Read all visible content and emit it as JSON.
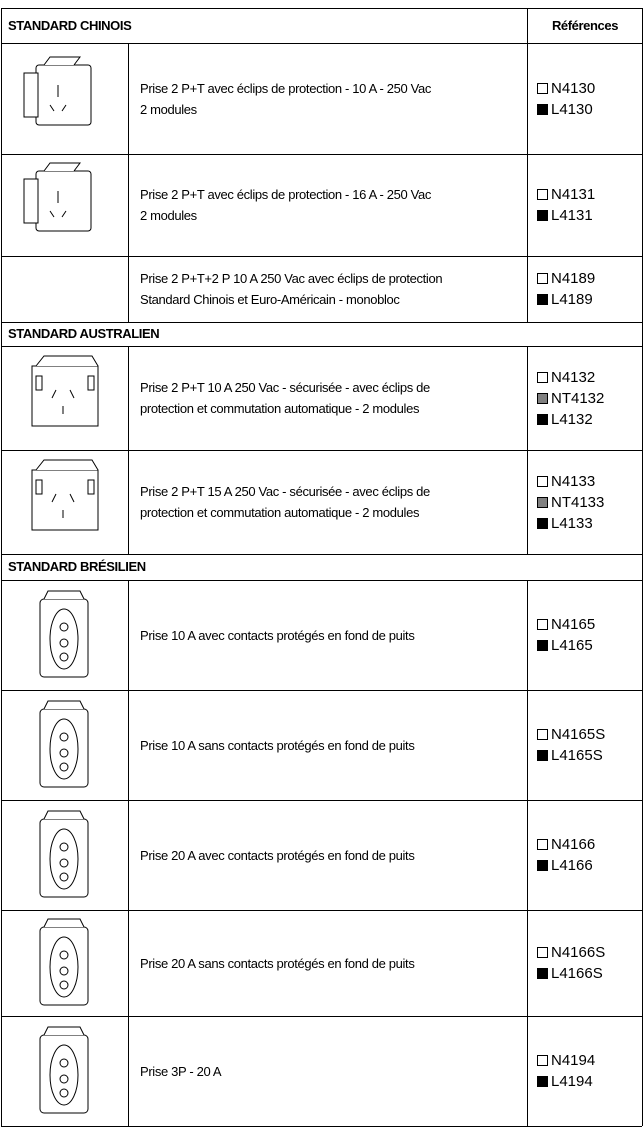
{
  "header": {
    "references_label": "Références"
  },
  "sections": [
    {
      "title": "STANDARD CHINOIS",
      "rows": [
        {
          "description": [
            "Prise 2 P+T avec éclips de protection -  10 A  - 250 Vac",
            "2 modules"
          ],
          "references": [
            {
              "code": "N4130",
              "color": "#ffffff"
            },
            {
              "code": "L4130",
              "color": "#000000"
            }
          ]
        },
        {
          "description": [
            "Prise 2 P+T avec éclips de protection -  16 A  - 250 Vac",
            "2 modules"
          ],
          "references": [
            {
              "code": "N4131",
              "color": "#ffffff"
            },
            {
              "code": "L4131",
              "color": "#000000"
            }
          ]
        },
        {
          "description": [
            "Prise 2 P+T+2 P 10 A 250 Vac avec éclips de protection",
            "Standard Chinois et Euro-Américain - monobloc"
          ],
          "references": [
            {
              "code": "N4189",
              "color": "#ffffff"
            },
            {
              "code": "L4189",
              "color": "#000000"
            }
          ]
        }
      ]
    },
    {
      "title": "STANDARD AUSTRALIEN",
      "rows": [
        {
          "description": [
            "Prise 2 P+T 10 A 250 Vac - sécurisée - avec éclips de",
            "protection et commutation automatique - 2 modules"
          ],
          "references": [
            {
              "code": "N4132",
              "color": "#ffffff"
            },
            {
              "code": "NT4132",
              "color": "#808080"
            },
            {
              "code": "L4132",
              "color": "#000000"
            }
          ]
        },
        {
          "description": [
            "Prise 2 P+T 15 A 250 Vac - sécurisée - avec éclips de",
            "protection et commutation automatique - 2 modules"
          ],
          "references": [
            {
              "code": "N4133",
              "color": "#ffffff"
            },
            {
              "code": "NT4133",
              "color": "#808080"
            },
            {
              "code": "L4133",
              "color": "#000000"
            }
          ]
        }
      ]
    },
    {
      "title": "STANDARD BRÉSILIEN",
      "rows": [
        {
          "description": [
            "Prise 10 A avec contacts protégés en fond de puits"
          ],
          "references": [
            {
              "code": "N4165",
              "color": "#ffffff"
            },
            {
              "code": "L4165",
              "color": "#000000"
            }
          ]
        },
        {
          "description": [
            "Prise 10 A sans contacts protégés en fond de puits"
          ],
          "references": [
            {
              "code": "N4165S",
              "color": "#ffffff"
            },
            {
              "code": "L4165S",
              "color": "#000000"
            }
          ]
        },
        {
          "description": [
            "Prise 20 A avec contacts protégés en fond de puits"
          ],
          "references": [
            {
              "code": "N4166",
              "color": "#ffffff"
            },
            {
              "code": "L4166",
              "color": "#000000"
            }
          ]
        },
        {
          "description": [
            "Prise 20 A sans contacts protégés en fond de puits"
          ],
          "references": [
            {
              "code": "N4166S",
              "color": "#ffffff"
            },
            {
              "code": "L4166S",
              "color": "#000000"
            }
          ]
        },
        {
          "description": [
            "Prise 3P - 20 A"
          ],
          "references": [
            {
              "code": "N4194",
              "color": "#ffffff"
            },
            {
              "code": "L4194",
              "color": "#000000"
            }
          ]
        }
      ]
    }
  ]
}
